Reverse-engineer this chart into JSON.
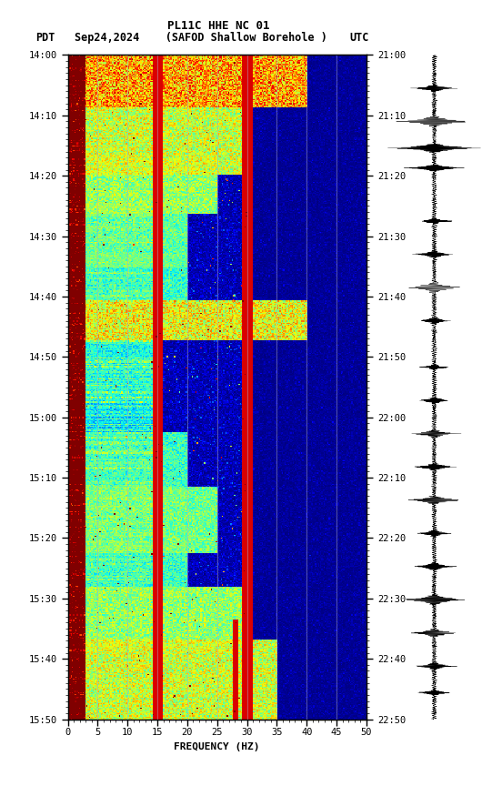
{
  "title_line1": "PL11C HHE NC 01",
  "title_line2": "Sep24,2024    (SAFOD Shallow Borehole )",
  "label_left": "PDT",
  "label_right": "UTC",
  "freq_min": 0,
  "freq_max": 50,
  "freq_label": "FREQUENCY (HZ)",
  "time_ticks_left": [
    "14:00",
    "14:10",
    "14:20",
    "14:30",
    "14:40",
    "14:50",
    "15:00",
    "15:10",
    "15:20",
    "15:30",
    "15:40",
    "15:50"
  ],
  "time_ticks_right": [
    "21:00",
    "21:10",
    "21:20",
    "21:30",
    "21:40",
    "21:50",
    "22:00",
    "22:10",
    "22:20",
    "22:30",
    "22:40",
    "22:50"
  ],
  "grid_lines_hz": [
    5,
    10,
    15,
    20,
    25,
    30,
    35,
    40,
    45
  ],
  "background_color": "#ffffff",
  "fig_width": 5.52,
  "fig_height": 8.64,
  "dpi": 100
}
